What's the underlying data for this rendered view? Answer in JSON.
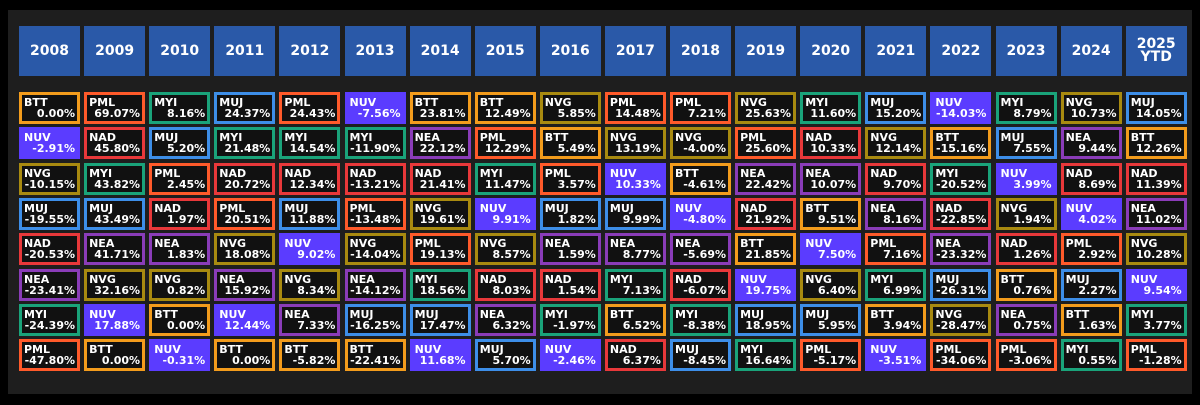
{
  "years": [
    "2008",
    "2009",
    "2010",
    "2011",
    "2012",
    "2013",
    "2014",
    "2015",
    "2016",
    "2017",
    "2018",
    "2019",
    "2020",
    "2021",
    "2022",
    "2023",
    "2024",
    "2025\nYTD"
  ],
  "colors": {
    "BTT": "#f39c1c",
    "PML": "#ff5a2a",
    "MYI": "#1aa37a",
    "MUJ": "#3d8ee8",
    "NUV": "#5b3cff",
    "NAD": "#e8383a",
    "NVG": "#a88a10",
    "NEA": "#8a3cb8"
  },
  "chart_data": {
    "type": "table",
    "columns": [
      [
        [
          "BTT",
          "0.00%"
        ],
        [
          "NUV",
          "-2.91%"
        ],
        [
          "NVG",
          "-10.15%"
        ],
        [
          "MUJ",
          "-19.55%"
        ],
        [
          "NAD",
          "-20.53%"
        ],
        [
          "NEA",
          "-23.41%"
        ],
        [
          "MYI",
          "-24.39%"
        ],
        [
          "PML",
          "-47.80%"
        ]
      ],
      [
        [
          "PML",
          "69.07%"
        ],
        [
          "NAD",
          "45.80%"
        ],
        [
          "MYI",
          "43.82%"
        ],
        [
          "MUJ",
          "43.49%"
        ],
        [
          "NEA",
          "41.71%"
        ],
        [
          "NVG",
          "32.16%"
        ],
        [
          "NUV",
          "17.88%"
        ],
        [
          "BTT",
          "0.00%"
        ]
      ],
      [
        [
          "MYI",
          "8.16%"
        ],
        [
          "MUJ",
          "5.20%"
        ],
        [
          "PML",
          "2.45%"
        ],
        [
          "NAD",
          "1.97%"
        ],
        [
          "NEA",
          "1.83%"
        ],
        [
          "NVG",
          "0.82%"
        ],
        [
          "BTT",
          "0.00%"
        ],
        [
          "NUV",
          "-0.31%"
        ]
      ],
      [
        [
          "MUJ",
          "24.37%"
        ],
        [
          "MYI",
          "21.48%"
        ],
        [
          "NAD",
          "20.72%"
        ],
        [
          "PML",
          "20.51%"
        ],
        [
          "NVG",
          "18.08%"
        ],
        [
          "NEA",
          "15.92%"
        ],
        [
          "NUV",
          "12.44%"
        ],
        [
          "BTT",
          "0.00%"
        ]
      ],
      [
        [
          "PML",
          "24.43%"
        ],
        [
          "MYI",
          "14.54%"
        ],
        [
          "NAD",
          "12.34%"
        ],
        [
          "MUJ",
          "11.88%"
        ],
        [
          "NUV",
          "9.02%"
        ],
        [
          "NVG",
          "8.34%"
        ],
        [
          "NEA",
          "7.33%"
        ],
        [
          "BTT",
          "-5.82%"
        ]
      ],
      [
        [
          "NUV",
          "-7.56%"
        ],
        [
          "MYI",
          "-11.90%"
        ],
        [
          "NAD",
          "-13.21%"
        ],
        [
          "PML",
          "-13.48%"
        ],
        [
          "NVG",
          "-14.04%"
        ],
        [
          "NEA",
          "-14.12%"
        ],
        [
          "MUJ",
          "-16.25%"
        ],
        [
          "BTT",
          "-22.41%"
        ]
      ],
      [
        [
          "BTT",
          "23.81%"
        ],
        [
          "NEA",
          "22.12%"
        ],
        [
          "NAD",
          "21.41%"
        ],
        [
          "NVG",
          "19.61%"
        ],
        [
          "PML",
          "19.13%"
        ],
        [
          "MYI",
          "18.56%"
        ],
        [
          "MUJ",
          "17.47%"
        ],
        [
          "NUV",
          "11.68%"
        ]
      ],
      [
        [
          "BTT",
          "12.49%"
        ],
        [
          "PML",
          "12.29%"
        ],
        [
          "MYI",
          "11.47%"
        ],
        [
          "NUV",
          "9.91%"
        ],
        [
          "NVG",
          "8.57%"
        ],
        [
          "NAD",
          "8.03%"
        ],
        [
          "NEA",
          "6.32%"
        ],
        [
          "MUJ",
          "5.70%"
        ]
      ],
      [
        [
          "NVG",
          "5.85%"
        ],
        [
          "BTT",
          "5.49%"
        ],
        [
          "PML",
          "3.57%"
        ],
        [
          "MUJ",
          "1.82%"
        ],
        [
          "NEA",
          "1.59%"
        ],
        [
          "NAD",
          "1.54%"
        ],
        [
          "MYI",
          "-1.97%"
        ],
        [
          "NUV",
          "-2.46%"
        ]
      ],
      [
        [
          "PML",
          "14.48%"
        ],
        [
          "NVG",
          "13.19%"
        ],
        [
          "NUV",
          "10.33%"
        ],
        [
          "MUJ",
          "9.99%"
        ],
        [
          "NEA",
          "8.77%"
        ],
        [
          "MYI",
          "7.13%"
        ],
        [
          "BTT",
          "6.52%"
        ],
        [
          "NAD",
          "6.37%"
        ]
      ],
      [
        [
          "PML",
          "7.21%"
        ],
        [
          "NVG",
          "-4.00%"
        ],
        [
          "BTT",
          "-4.61%"
        ],
        [
          "NUV",
          "-4.80%"
        ],
        [
          "NEA",
          "-5.69%"
        ],
        [
          "NAD",
          "-6.07%"
        ],
        [
          "MYI",
          "-8.38%"
        ],
        [
          "MUJ",
          "-8.45%"
        ]
      ],
      [
        [
          "NVG",
          "25.63%"
        ],
        [
          "PML",
          "25.60%"
        ],
        [
          "NEA",
          "22.42%"
        ],
        [
          "NAD",
          "21.92%"
        ],
        [
          "BTT",
          "21.85%"
        ],
        [
          "NUV",
          "19.75%"
        ],
        [
          "MUJ",
          "18.95%"
        ],
        [
          "MYI",
          "16.64%"
        ]
      ],
      [
        [
          "MYI",
          "11.60%"
        ],
        [
          "NAD",
          "10.33%"
        ],
        [
          "NEA",
          "10.07%"
        ],
        [
          "BTT",
          "9.51%"
        ],
        [
          "NUV",
          "7.50%"
        ],
        [
          "NVG",
          "6.40%"
        ],
        [
          "MUJ",
          "5.95%"
        ],
        [
          "PML",
          "-5.17%"
        ]
      ],
      [
        [
          "MUJ",
          "15.20%"
        ],
        [
          "NVG",
          "12.14%"
        ],
        [
          "NAD",
          "9.70%"
        ],
        [
          "NEA",
          "8.16%"
        ],
        [
          "PML",
          "7.16%"
        ],
        [
          "MYI",
          "6.99%"
        ],
        [
          "BTT",
          "3.94%"
        ],
        [
          "NUV",
          "-3.51%"
        ]
      ],
      [
        [
          "NUV",
          "-14.03%"
        ],
        [
          "BTT",
          "-15.16%"
        ],
        [
          "MYI",
          "-20.52%"
        ],
        [
          "NAD",
          "-22.85%"
        ],
        [
          "NEA",
          "-23.32%"
        ],
        [
          "MUJ",
          "-26.31%"
        ],
        [
          "NVG",
          "-28.47%"
        ],
        [
          "PML",
          "-34.06%"
        ]
      ],
      [
        [
          "MYI",
          "8.79%"
        ],
        [
          "MUJ",
          "7.55%"
        ],
        [
          "NUV",
          "3.99%"
        ],
        [
          "NVG",
          "1.94%"
        ],
        [
          "NAD",
          "1.26%"
        ],
        [
          "BTT",
          "0.76%"
        ],
        [
          "NEA",
          "0.75%"
        ],
        [
          "PML",
          "-3.06%"
        ]
      ],
      [
        [
          "NVG",
          "10.73%"
        ],
        [
          "NEA",
          "9.44%"
        ],
        [
          "NAD",
          "8.69%"
        ],
        [
          "NUV",
          "4.02%"
        ],
        [
          "PML",
          "2.92%"
        ],
        [
          "MUJ",
          "2.27%"
        ],
        [
          "BTT",
          "1.63%"
        ],
        [
          "MYI",
          "0.55%"
        ]
      ],
      [
        [
          "MUJ",
          "14.05%"
        ],
        [
          "BTT",
          "12.26%"
        ],
        [
          "NAD",
          "11.39%"
        ],
        [
          "NEA",
          "11.02%"
        ],
        [
          "NVG",
          "10.28%"
        ],
        [
          "NUV",
          "9.54%"
        ],
        [
          "MYI",
          "3.77%"
        ],
        [
          "PML",
          "-1.28%"
        ]
      ]
    ]
  }
}
